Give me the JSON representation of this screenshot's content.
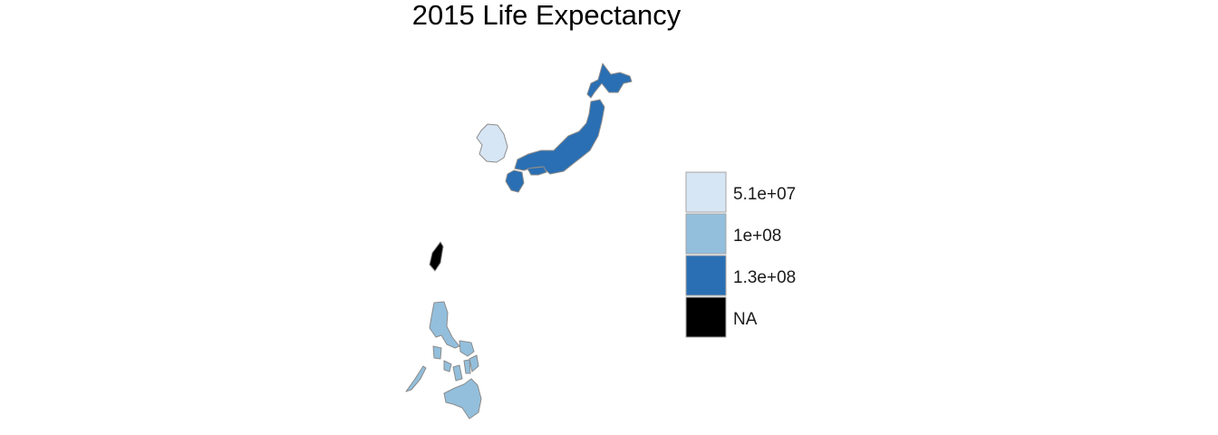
{
  "title": "2015 Life Expectancy",
  "colors": {
    "low": "#d7e6f4",
    "mid": "#93bfdc",
    "high": "#2a6fb3",
    "na": "#000000",
    "border": "#8c8c8c"
  },
  "legend": {
    "position": "right",
    "entries": [
      {
        "label": "5.1e+07",
        "color": "#d7e6f4"
      },
      {
        "label": "1e+08",
        "color": "#93bfdc"
      },
      {
        "label": "1.3e+08",
        "color": "#2a6fb3"
      },
      {
        "label": "NA",
        "color": "#000000"
      }
    ]
  },
  "regions": [
    {
      "id": "japan",
      "bin": "1.3e+08",
      "color": "#2a6fb3"
    },
    {
      "id": "south-korea",
      "bin": "5.1e+07",
      "color": "#d7e6f4"
    },
    {
      "id": "taiwan",
      "bin": "NA",
      "color": "#000000"
    },
    {
      "id": "philippines",
      "bin": "1e+08",
      "color": "#93bfdc"
    }
  ]
}
